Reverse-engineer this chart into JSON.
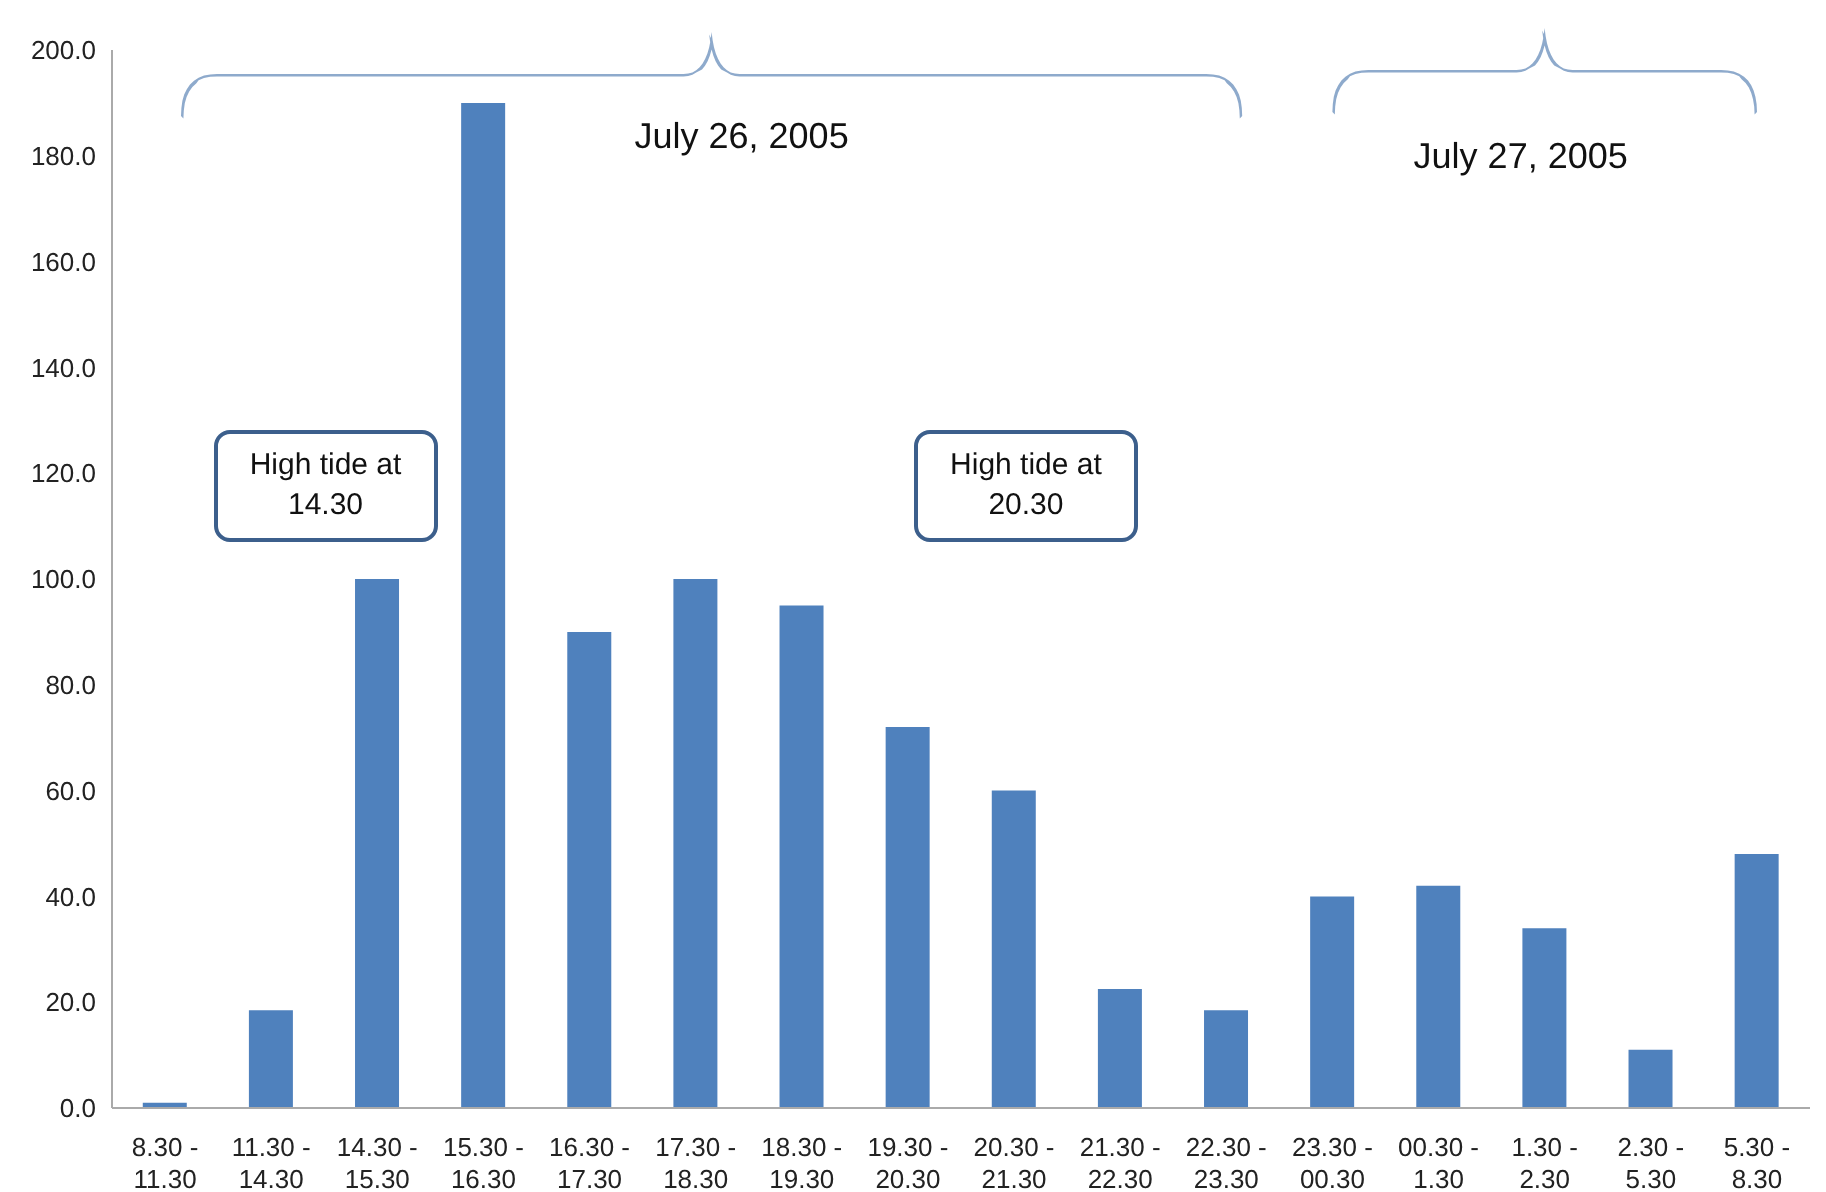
{
  "chart_data": {
    "type": "bar",
    "categories": [
      "8.30 - 11.30",
      "11.30 - 14.30",
      "14.30 - 15.30",
      "15.30 - 16.30",
      "16.30 - 17.30",
      "17.30 - 18.30",
      "18.30 - 19.30",
      "19.30 - 20.30",
      "20.30 - 21.30",
      "21.30 - 22.30",
      "22.30 - 23.30",
      "23.30 - 00.30",
      "00.30 - 1.30",
      "1.30 - 2.30",
      "2.30 - 5.30",
      "5.30 - 8.30"
    ],
    "values": [
      1,
      18.5,
      100,
      190,
      90,
      100,
      95,
      72,
      60,
      22.5,
      18.5,
      40,
      42,
      34,
      11,
      48
    ],
    "color": "#4f81bd",
    "ylim": [
      0,
      200
    ],
    "yticks": [
      {
        "value": 0,
        "label": "0.0"
      },
      {
        "value": 20,
        "label": "20.0"
      },
      {
        "value": 40,
        "label": "40.0"
      },
      {
        "value": 60,
        "label": "60.0"
      },
      {
        "value": 80,
        "label": "80.0"
      },
      {
        "value": 100,
        "label": "100.0"
      },
      {
        "value": 120,
        "label": "120.0"
      },
      {
        "value": 140,
        "label": "140.0"
      },
      {
        "value": 160,
        "label": "160.0"
      },
      {
        "value": 180,
        "label": "180.0"
      },
      {
        "value": 200,
        "label": "200.0"
      }
    ],
    "grid": false,
    "annotations": [
      "July 26, 2005",
      "July 27, 2005",
      "High tide at 14.30",
      "High tide at 20.30"
    ]
  }
}
